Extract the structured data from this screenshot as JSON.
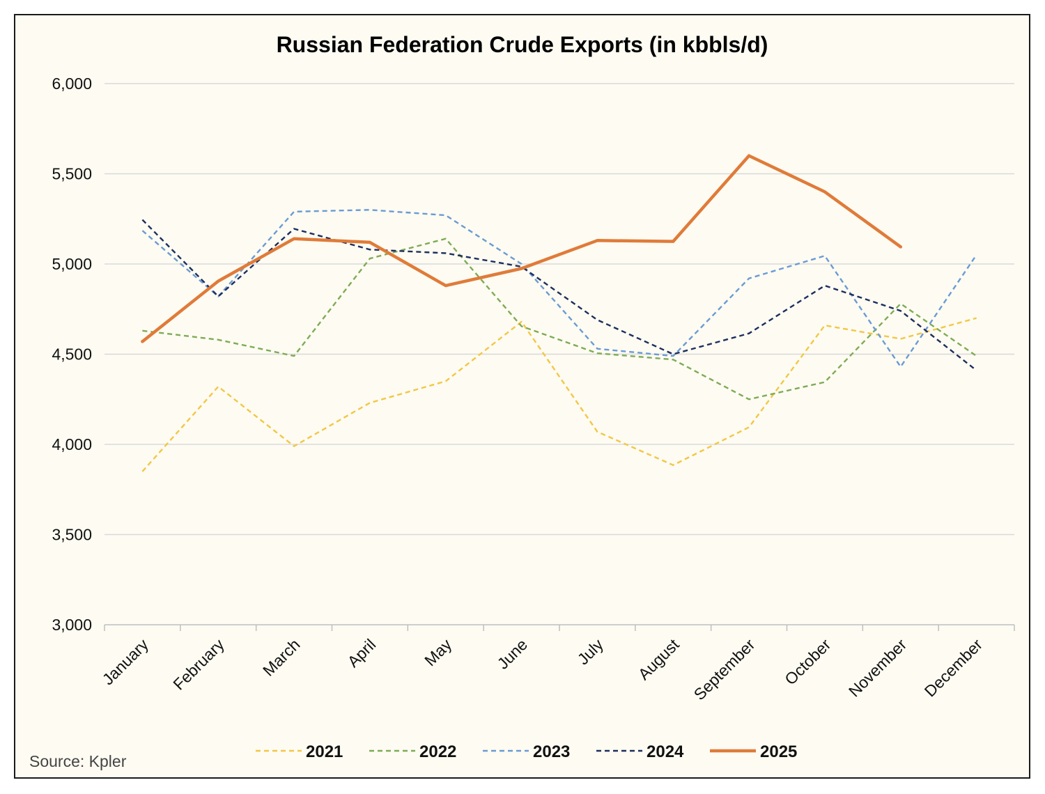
{
  "chart_data": {
    "type": "line",
    "title": "Russian Federation Crude Exports (in kbbls/d)",
    "xlabel": "",
    "ylabel": "",
    "ylim": [
      3000,
      6000
    ],
    "yticks": [
      3000,
      3500,
      4000,
      4500,
      5000,
      5500,
      6000
    ],
    "ytick_labels": [
      "3,000",
      "3,500",
      "4,000",
      "4,500",
      "5,000",
      "5,500",
      "6,000"
    ],
    "categories": [
      "January",
      "February",
      "March",
      "April",
      "May",
      "June",
      "July",
      "August",
      "September",
      "October",
      "November",
      "December"
    ],
    "grid": true,
    "legend_position": "bottom",
    "series": [
      {
        "name": "2021",
        "color": "#f2c744",
        "dash": "dashed",
        "values": [
          3850,
          4320,
          3990,
          4230,
          4350,
          4680,
          4070,
          3885,
          4095,
          4660,
          4585,
          4700
        ]
      },
      {
        "name": "2022",
        "color": "#7eab55",
        "dash": "dashed",
        "values": [
          4630,
          4580,
          4490,
          5030,
          5140,
          4655,
          4505,
          4470,
          4250,
          4345,
          4780,
          4490
        ]
      },
      {
        "name": "2023",
        "color": "#6a9bd3",
        "dash": "dashed",
        "values": [
          5185,
          4820,
          5290,
          5300,
          5270,
          5000,
          4530,
          4490,
          4920,
          5045,
          4430,
          5050
        ]
      },
      {
        "name": "2024",
        "color": "#1c2e5e",
        "dash": "dashed",
        "values": [
          5245,
          4820,
          5195,
          5080,
          5060,
          4985,
          4690,
          4500,
          4615,
          4880,
          4740,
          4410
        ]
      },
      {
        "name": "2025",
        "color": "#e07b39",
        "dash": "solid",
        "values": [
          4570,
          4905,
          5140,
          5120,
          4880,
          4975,
          5130,
          5125,
          5600,
          5400,
          5095,
          null
        ]
      }
    ]
  },
  "source": "Source: Kpler"
}
